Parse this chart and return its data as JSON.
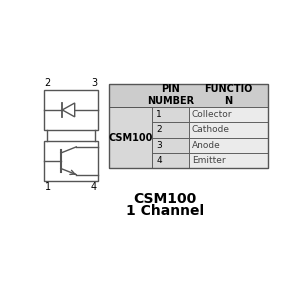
{
  "title_line1": "CSM100",
  "title_line2": "1 Channel",
  "component_label": "CSM100",
  "header_col1": "PIN\nNUMBER",
  "header_col2": "FUNCTIO\nN",
  "pins": [
    {
      "number": "1",
      "function": "Collector"
    },
    {
      "number": "2",
      "function": "Cathode"
    },
    {
      "number": "3",
      "function": "Anode"
    },
    {
      "number": "4",
      "function": "Emitter"
    }
  ],
  "pin_labels_upper": [
    "2",
    "3"
  ],
  "pin_labels_lower": [
    "1",
    "4"
  ],
  "bg_color": "#ffffff",
  "table_header_bg": "#cccccc",
  "table_csm_bg": "#d8d8d8",
  "table_pin_bg": "#d8d8d8",
  "table_func_bg": "#ebebeb",
  "border_color": "#555555",
  "text_color": "#000000",
  "func_text_color": "#444444",
  "font_size_title": 9,
  "font_size_table_header": 7,
  "font_size_table_data": 6.5,
  "font_size_pin_label": 7,
  "schematic_lw": 1.0
}
